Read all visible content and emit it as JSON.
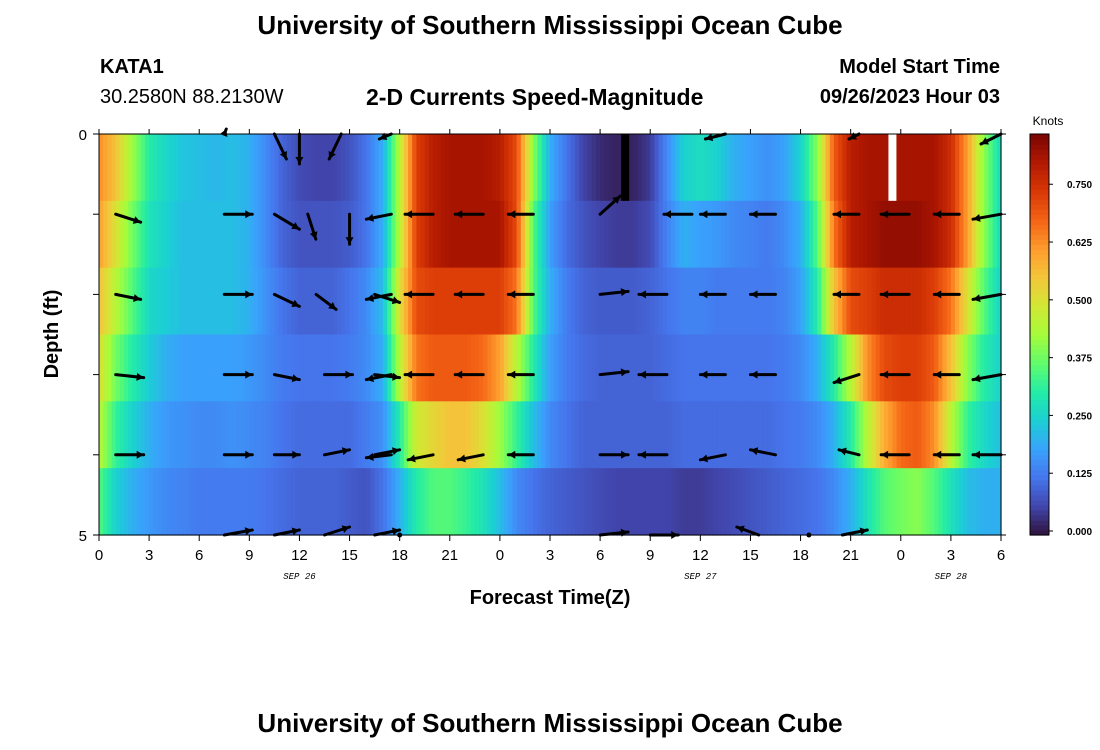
{
  "header": {
    "title": "University of Southern Mississippi Ocean Cube",
    "station_id": "KATA1",
    "coords": "30.2580N  88.2130W",
    "subtitle": "2-D Currents Speed-Magnitude",
    "model_start_label": "Model Start Time",
    "model_start_value": "09/26/2023 Hour 03"
  },
  "footer": {
    "title": "University of Southern Mississippi Ocean Cube"
  },
  "colors": {
    "scale": [
      "#30123b",
      "#4145ab",
      "#4675ed",
      "#39a2fc",
      "#1bcfd4",
      "#24eca6",
      "#61fc6c",
      "#a4fc3b",
      "#d1e834",
      "#f3c63a",
      "#fe9b2d",
      "#f36315",
      "#d93806",
      "#b11901",
      "#7a0403"
    ],
    "arrow": "#000000",
    "missing": "#ffffff"
  },
  "chart_data": {
    "type": "heatmap",
    "title": "2-D Currents Speed-Magnitude",
    "xlabel": "Forecast Time(Z)",
    "ylabel": "Depth (ft)",
    "x_hours": [
      0,
      3,
      6,
      9,
      12,
      15,
      18,
      21,
      24,
      27,
      30,
      33,
      36,
      39,
      42,
      45,
      48,
      51,
      54
    ],
    "x_tick_labels": [
      "0",
      "3",
      "6",
      "9",
      "12",
      "15",
      "18",
      "21",
      "0",
      "3",
      "6",
      "9",
      "12",
      "15",
      "18",
      "21",
      "0",
      "3",
      "6"
    ],
    "date_labels": [
      {
        "hour": 12,
        "label": "SEP 26"
      },
      {
        "hour": 36,
        "label": "SEP 27"
      },
      {
        "hour": 51,
        "label": "SEP 28"
      }
    ],
    "x_range_hours": [
      0,
      54
    ],
    "y_range_ft": [
      0,
      5
    ],
    "y_tick_labels": [
      {
        "depth": 0,
        "label": "0"
      },
      {
        "depth": 5,
        "label": "5"
      }
    ],
    "depth_levels": 5,
    "colorbar": {
      "label": "Knots",
      "range": [
        0,
        0.85
      ],
      "ticks": [
        0.0,
        0.125,
        0.25,
        0.375,
        0.5,
        0.625,
        0.75
      ],
      "tick_labels": [
        "0.000",
        "0.125",
        "0.250",
        "0.375",
        "0.500",
        "0.625",
        "0.750"
      ]
    },
    "speed_keyframes": {
      "hours": [
        0,
        1,
        2,
        3,
        4,
        5,
        6,
        7,
        8,
        9,
        10,
        11,
        12,
        13,
        14,
        15,
        16,
        17,
        18,
        19,
        20,
        21,
        22,
        23,
        24,
        25,
        26,
        27,
        28,
        29,
        30,
        31,
        32,
        33,
        34,
        35,
        36,
        37,
        38,
        39,
        40,
        41,
        42,
        43,
        44,
        45,
        46,
        47,
        48,
        49,
        50,
        51,
        52,
        53,
        54
      ],
      "rows": [
        [
          0.62,
          0.55,
          0.42,
          0.3,
          0.26,
          0.23,
          0.22,
          0.21,
          0.22,
          0.2,
          0.15,
          0.1,
          0.07,
          0.06,
          0.06,
          0.08,
          0.12,
          0.2,
          0.45,
          0.72,
          0.78,
          0.8,
          0.8,
          0.8,
          0.78,
          0.7,
          0.4,
          0.2,
          0.12,
          0.06,
          0.03,
          0.02,
          0.02,
          0.05,
          0.15,
          0.25,
          0.27,
          0.25,
          0.2,
          0.18,
          0.16,
          0.18,
          0.25,
          0.4,
          0.68,
          0.78,
          0.8,
          0.8,
          0.8,
          0.8,
          0.8,
          0.75,
          0.6,
          0.4,
          0.26
        ],
        [
          0.6,
          0.5,
          0.38,
          0.28,
          0.25,
          0.22,
          0.22,
          0.22,
          0.22,
          0.2,
          0.15,
          0.1,
          0.08,
          0.08,
          0.08,
          0.09,
          0.12,
          0.2,
          0.45,
          0.72,
          0.78,
          0.8,
          0.8,
          0.8,
          0.8,
          0.7,
          0.35,
          0.18,
          0.11,
          0.08,
          0.06,
          0.05,
          0.05,
          0.07,
          0.14,
          0.2,
          0.18,
          0.17,
          0.15,
          0.14,
          0.13,
          0.15,
          0.2,
          0.35,
          0.65,
          0.78,
          0.8,
          0.82,
          0.82,
          0.82,
          0.8,
          0.75,
          0.6,
          0.4,
          0.26
        ],
        [
          0.55,
          0.45,
          0.35,
          0.26,
          0.24,
          0.22,
          0.22,
          0.22,
          0.22,
          0.2,
          0.16,
          0.12,
          0.1,
          0.1,
          0.1,
          0.12,
          0.15,
          0.22,
          0.5,
          0.7,
          0.72,
          0.72,
          0.72,
          0.72,
          0.72,
          0.65,
          0.35,
          0.2,
          0.13,
          0.1,
          0.09,
          0.09,
          0.09,
          0.1,
          0.12,
          0.14,
          0.14,
          0.13,
          0.13,
          0.13,
          0.13,
          0.14,
          0.18,
          0.3,
          0.55,
          0.7,
          0.72,
          0.75,
          0.75,
          0.75,
          0.72,
          0.65,
          0.5,
          0.35,
          0.25
        ],
        [
          0.5,
          0.38,
          0.3,
          0.24,
          0.2,
          0.18,
          0.18,
          0.18,
          0.18,
          0.17,
          0.15,
          0.13,
          0.12,
          0.12,
          0.12,
          0.13,
          0.15,
          0.2,
          0.45,
          0.65,
          0.68,
          0.68,
          0.68,
          0.66,
          0.6,
          0.45,
          0.3,
          0.18,
          0.13,
          0.11,
          0.1,
          0.1,
          0.1,
          0.1,
          0.11,
          0.12,
          0.12,
          0.12,
          0.12,
          0.12,
          0.12,
          0.13,
          0.15,
          0.2,
          0.3,
          0.45,
          0.62,
          0.7,
          0.72,
          0.72,
          0.68,
          0.55,
          0.4,
          0.3,
          0.25
        ],
        [
          0.45,
          0.32,
          0.25,
          0.2,
          0.17,
          0.16,
          0.15,
          0.15,
          0.16,
          0.15,
          0.14,
          0.12,
          0.11,
          0.11,
          0.11,
          0.11,
          0.13,
          0.16,
          0.3,
          0.48,
          0.52,
          0.55,
          0.55,
          0.5,
          0.42,
          0.32,
          0.22,
          0.15,
          0.12,
          0.1,
          0.1,
          0.1,
          0.1,
          0.1,
          0.1,
          0.11,
          0.11,
          0.11,
          0.11,
          0.11,
          0.11,
          0.12,
          0.13,
          0.15,
          0.2,
          0.3,
          0.45,
          0.58,
          0.66,
          0.68,
          0.62,
          0.45,
          0.32,
          0.26,
          0.22
        ],
        [
          0.35,
          0.25,
          0.2,
          0.17,
          0.15,
          0.14,
          0.13,
          0.13,
          0.13,
          0.13,
          0.12,
          0.11,
          0.1,
          0.1,
          0.1,
          0.09,
          0.08,
          0.12,
          0.2,
          0.3,
          0.35,
          0.35,
          0.32,
          0.28,
          0.22,
          0.15,
          0.12,
          0.1,
          0.09,
          0.08,
          0.07,
          0.06,
          0.06,
          0.06,
          0.06,
          0.05,
          0.05,
          0.06,
          0.07,
          0.08,
          0.09,
          0.1,
          0.11,
          0.12,
          0.15,
          0.2,
          0.28,
          0.35,
          0.38,
          0.4,
          0.35,
          0.28,
          0.22,
          0.2,
          0.2
        ]
      ]
    },
    "gap_markers": [
      {
        "hour": 31.5,
        "row": 0,
        "value": "max"
      },
      {
        "hour": 47.5,
        "row": 0,
        "value": "missing"
      }
    ],
    "current_vectors": [
      {
        "depth_level": 0,
        "arrows": [
          [
            7.5,
            2,
            -5
          ],
          [
            10.5,
            12,
            25
          ],
          [
            12,
            0,
            30
          ],
          [
            14.5,
            -12,
            25
          ],
          [
            17.5,
            -12,
            5
          ],
          [
            37.5,
            -20,
            5
          ],
          [
            45.5,
            -10,
            5
          ],
          [
            54,
            -20,
            10
          ]
        ]
      },
      {
        "depth_level": 1,
        "arrows": [
          [
            1,
            25,
            8
          ],
          [
            7.5,
            28,
            0
          ],
          [
            10.5,
            25,
            15
          ],
          [
            12.5,
            8,
            25
          ],
          [
            15,
            0,
            30
          ],
          [
            17.5,
            -25,
            5
          ],
          [
            20,
            -28,
            0
          ],
          [
            23,
            -28,
            0
          ],
          [
            26,
            -25,
            0
          ],
          [
            30,
            20,
            -18
          ],
          [
            35.5,
            -28,
            0
          ],
          [
            37.5,
            -25,
            0
          ],
          [
            40.5,
            -25,
            0
          ],
          [
            45.5,
            -25,
            0
          ],
          [
            48.5,
            -28,
            0
          ],
          [
            51.5,
            -25,
            0
          ],
          [
            54,
            -28,
            5
          ]
        ]
      },
      {
        "depth_level": 2,
        "arrows": [
          [
            1,
            25,
            5
          ],
          [
            7.5,
            28,
            0
          ],
          [
            10.5,
            25,
            12
          ],
          [
            13,
            20,
            15
          ],
          [
            16.5,
            25,
            8
          ],
          [
            17.5,
            -25,
            5
          ],
          [
            20,
            -28,
            0
          ],
          [
            23,
            -28,
            0
          ],
          [
            26,
            -25,
            0
          ],
          [
            30,
            28,
            -3
          ],
          [
            34,
            -28,
            0
          ],
          [
            37.5,
            -25,
            0
          ],
          [
            40.5,
            -25,
            0
          ],
          [
            45.5,
            -25,
            0
          ],
          [
            48.5,
            -28,
            0
          ],
          [
            51.5,
            -25,
            0
          ],
          [
            54,
            -28,
            5
          ]
        ]
      },
      {
        "depth_level": 3,
        "arrows": [
          [
            1,
            28,
            3
          ],
          [
            7.5,
            28,
            0
          ],
          [
            10.5,
            25,
            5
          ],
          [
            13.5,
            28,
            0
          ],
          [
            16.5,
            25,
            3
          ],
          [
            17.5,
            -25,
            5
          ],
          [
            20,
            -28,
            0
          ],
          [
            23,
            -28,
            0
          ],
          [
            26,
            -25,
            0
          ],
          [
            30,
            28,
            -3
          ],
          [
            34,
            -28,
            0
          ],
          [
            37.5,
            -25,
            0
          ],
          [
            40.5,
            -25,
            0
          ],
          [
            45.5,
            -25,
            8
          ],
          [
            48.5,
            -28,
            0
          ],
          [
            51.5,
            -25,
            0
          ],
          [
            54,
            -28,
            5
          ]
        ]
      },
      {
        "depth_level": 4,
        "arrows": [
          [
            1,
            28,
            0
          ],
          [
            7.5,
            28,
            0
          ],
          [
            10.5,
            25,
            0
          ],
          [
            13.5,
            25,
            -5
          ],
          [
            16.5,
            25,
            -5
          ],
          [
            17.5,
            -25,
            3
          ],
          [
            20,
            -25,
            5
          ],
          [
            23,
            -25,
            5
          ],
          [
            26,
            -25,
            0
          ],
          [
            30,
            28,
            0
          ],
          [
            34,
            -28,
            0
          ],
          [
            37.5,
            -25,
            5
          ],
          [
            40.5,
            -25,
            -5
          ],
          [
            45.5,
            -20,
            -5
          ],
          [
            48.5,
            -28,
            0
          ],
          [
            51.5,
            -25,
            0
          ],
          [
            54,
            -28,
            0
          ]
        ]
      },
      {
        "depth_level": 5,
        "arrows": [
          [
            7.5,
            28,
            -5
          ],
          [
            10.5,
            25,
            -5
          ],
          [
            13.5,
            25,
            -8
          ],
          [
            16.5,
            25,
            -5
          ],
          [
            18,
            0,
            0
          ],
          [
            30,
            28,
            -3
          ],
          [
            33,
            28,
            0
          ],
          [
            39.5,
            -22,
            -8
          ],
          [
            42.5,
            0,
            0
          ],
          [
            44.5,
            25,
            -5
          ]
        ]
      }
    ]
  }
}
